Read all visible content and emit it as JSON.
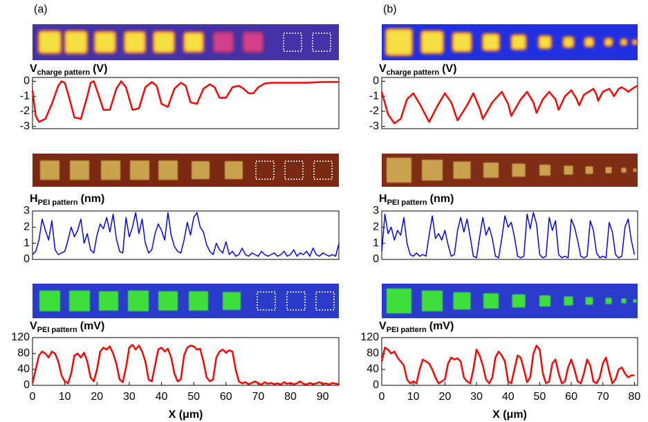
{
  "chart_data": [
    {
      "type": "line",
      "panel_label": "(a)",
      "ylabel": {
        "main": "V",
        "sub": "charge pattern",
        "unit": "(V)"
      },
      "color": "#ff0000",
      "xlim": [
        0,
        95
      ],
      "ylim": [
        -3.15,
        0.25
      ],
      "yticks": [
        0,
        -1,
        -2,
        -3
      ],
      "x": [
        0,
        1,
        2,
        4,
        6,
        8,
        9,
        10,
        11,
        13,
        15,
        17,
        18,
        19,
        20,
        22,
        24,
        26,
        27.5,
        29,
        31,
        33,
        35,
        37,
        38.5,
        40,
        42,
        44,
        46,
        47.5,
        49,
        51,
        53,
        55,
        56.5,
        58,
        60,
        62,
        64,
        65.5,
        67,
        68.5,
        70,
        72,
        74,
        76,
        80,
        85,
        90,
        95
      ],
      "values": [
        -0.6,
        -2.3,
        -2.7,
        -2.5,
        -1.5,
        -0.3,
        0,
        -0.1,
        -0.8,
        -2.4,
        -2.5,
        -1.0,
        -0.1,
        0,
        -0.6,
        -1.9,
        -1.9,
        -0.5,
        0,
        -0.4,
        -1.9,
        -1.8,
        -0.4,
        -0.05,
        -0.3,
        -1.5,
        -1.7,
        -0.5,
        -0.1,
        -0.3,
        -1.4,
        -1.5,
        -0.5,
        -0.2,
        -0.4,
        -1.1,
        -1.1,
        -0.4,
        -0.3,
        -0.5,
        -0.8,
        -0.8,
        -0.4,
        -0.15,
        -0.1,
        -0.1,
        -0.1,
        -0.1,
        -0.05,
        -0.05
      ]
    },
    {
      "type": "line",
      "ylabel": {
        "main": "H",
        "sub": "PEI pattern",
        "unit": "(nm)"
      },
      "color": "#0000ff",
      "xlim": [
        0,
        95
      ],
      "ylim": [
        0,
        3
      ],
      "yticks": [
        0,
        1,
        2,
        3
      ],
      "x": [
        0,
        1,
        2,
        3,
        4,
        5,
        6,
        7,
        8,
        9,
        10,
        11,
        12,
        13,
        14,
        15,
        16,
        17,
        18,
        19,
        20,
        21,
        22,
        23,
        24,
        25,
        26,
        27,
        28,
        29,
        30,
        31,
        32,
        33,
        34,
        35,
        36,
        37,
        38,
        39,
        40,
        41,
        42,
        43,
        44,
        45,
        46,
        47,
        48,
        49,
        50,
        51,
        52,
        53,
        54,
        55,
        56,
        57,
        58,
        59,
        60,
        61,
        62,
        63,
        64,
        65,
        66,
        67,
        68,
        69,
        70,
        71,
        72,
        73,
        74,
        75,
        76,
        77,
        78,
        79,
        80,
        81,
        82,
        83,
        84,
        85,
        86,
        87,
        88,
        89,
        90,
        91,
        92,
        93,
        94,
        95
      ],
      "values": [
        0.3,
        0.5,
        1.2,
        2.5,
        1.8,
        1.2,
        2.4,
        0.6,
        0.3,
        0.4,
        0.5,
        1.2,
        2.0,
        1.4,
        1.8,
        2.5,
        1.0,
        1.6,
        0.6,
        0.4,
        1.5,
        2.2,
        1.9,
        2.6,
        1.7,
        2.8,
        1.3,
        0.5,
        0.4,
        2.6,
        1.4,
        2.0,
        2.9,
        1.6,
        2.5,
        1.0,
        0.4,
        0.6,
        1.6,
        2.2,
        1.8,
        1.2,
        2.9,
        1.5,
        0.8,
        0.5,
        0.4,
        1.2,
        2.3,
        1.5,
        2.6,
        2.9,
        2.0,
        1.7,
        0.9,
        0.5,
        0.3,
        1.0,
        0.6,
        0.4,
        1.1,
        0.3,
        0.5,
        0.2,
        0.3,
        0.7,
        0.3,
        0.2,
        0.4,
        0.3,
        0.2,
        0.5,
        0.3,
        0.2,
        0.3,
        0.4,
        0.2,
        0.3,
        0.5,
        0.2,
        0.3,
        0.6,
        0.2,
        0.4,
        0.3,
        0.5,
        0.2,
        0.7,
        0.3,
        0.2,
        0.4,
        0.3,
        0.2,
        0.3,
        0.2,
        1.0
      ]
    },
    {
      "type": "line",
      "ylabel": {
        "main": "V",
        "sub": "PEI pattern",
        "unit": "(mV)"
      },
      "color": "#ff0000",
      "xlabel": "X (μm)",
      "xlim": [
        0,
        95
      ],
      "ylim": [
        0,
        120
      ],
      "yticks": [
        0,
        40,
        80,
        120
      ],
      "xticks": [
        0,
        10,
        20,
        30,
        40,
        50,
        60,
        70,
        80,
        90
      ],
      "x": [
        0,
        1,
        2,
        3,
        4,
        5,
        6,
        7,
        8,
        9,
        10,
        11,
        12,
        13,
        14,
        15,
        16,
        17,
        18,
        19,
        20,
        21,
        22,
        23,
        24,
        25,
        26,
        27,
        28,
        29,
        30,
        31,
        32,
        33,
        34,
        35,
        36,
        37,
        38,
        39,
        40,
        41,
        42,
        43,
        44,
        45,
        46,
        47,
        48,
        49,
        50,
        51,
        52,
        53,
        54,
        55,
        56,
        57,
        58,
        59,
        60,
        61,
        62,
        63,
        64,
        65,
        66,
        67,
        68,
        69,
        70,
        71,
        72,
        73,
        74,
        75,
        76,
        77,
        78,
        79,
        80,
        81,
        82,
        83,
        84,
        85,
        86,
        87,
        88,
        89,
        90,
        91,
        92,
        93,
        94,
        95
      ],
      "values": [
        5,
        40,
        75,
        85,
        80,
        70,
        85,
        80,
        60,
        25,
        10,
        5,
        30,
        75,
        80,
        70,
        82,
        60,
        20,
        10,
        40,
        85,
        95,
        90,
        98,
        80,
        55,
        15,
        8,
        45,
        95,
        102,
        90,
        100,
        85,
        60,
        15,
        10,
        50,
        90,
        95,
        85,
        92,
        70,
        30,
        10,
        15,
        75,
        95,
        100,
        98,
        90,
        92,
        60,
        20,
        10,
        15,
        70,
        85,
        90,
        82,
        88,
        85,
        40,
        10,
        5,
        8,
        3,
        6,
        10,
        5,
        2,
        8,
        4,
        6,
        3,
        5,
        2,
        8,
        4,
        6,
        3,
        5,
        10,
        4,
        2,
        6,
        3,
        5,
        8,
        3,
        5,
        2,
        6,
        4,
        3
      ]
    },
    {
      "type": "line",
      "panel_label": "(b)",
      "ylabel": {
        "main": "V",
        "sub": "charge pattern",
        "unit": "(V)"
      },
      "color": "#ff0000",
      "xlim": [
        0,
        81
      ],
      "ylim": [
        -3.15,
        0.25
      ],
      "yticks": [
        0,
        -1,
        -2,
        -3
      ],
      "x": [
        0,
        2,
        4,
        6,
        8,
        10,
        12,
        15,
        18,
        20,
        22,
        24,
        27,
        29,
        31,
        32,
        35,
        38,
        40,
        41,
        44,
        46,
        48,
        49,
        51,
        53,
        55,
        56,
        58,
        60,
        61.5,
        62.5,
        64,
        67,
        68,
        68.5,
        70,
        72,
        73,
        73.5,
        75,
        76,
        77.5,
        78,
        80,
        81
      ],
      "values": [
        -0.7,
        -2.2,
        -2.8,
        -2.5,
        -1.2,
        -0.8,
        -1.5,
        -2.7,
        -1.5,
        -0.8,
        -1.4,
        -2.6,
        -1.6,
        -0.8,
        -1.8,
        -2.5,
        -1.4,
        -0.7,
        -1.5,
        -2.3,
        -1.2,
        -0.7,
        -1.4,
        -2.1,
        -1.2,
        -0.7,
        -1.2,
        -1.9,
        -1.0,
        -0.6,
        -1.1,
        -1.6,
        -0.9,
        -0.5,
        -0.9,
        -1.3,
        -0.7,
        -0.5,
        -0.8,
        -1.0,
        -0.5,
        -0.4,
        -0.6,
        -0.7,
        -0.4,
        -0.3
      ]
    },
    {
      "type": "line",
      "ylabel": {
        "main": "H",
        "sub": "PEI pattern",
        "unit": "(nm)"
      },
      "color": "#0000ff",
      "xlim": [
        0,
        81
      ],
      "ylim": [
        0,
        3
      ],
      "yticks": [
        0,
        1,
        2,
        3
      ],
      "x": [
        0,
        1,
        2,
        3,
        4,
        5,
        6,
        7,
        8,
        9,
        10,
        11,
        12,
        13,
        14,
        15,
        16,
        17,
        18,
        19,
        20,
        21,
        22,
        23,
        24,
        25,
        26,
        27,
        28,
        29,
        30,
        31,
        32,
        33,
        34,
        35,
        36,
        37,
        38,
        39,
        40,
        41,
        42,
        43,
        44,
        45,
        46,
        47,
        48,
        49,
        50,
        51,
        52,
        53,
        54,
        55,
        56,
        57,
        58,
        59,
        60,
        61,
        62,
        63,
        64,
        65,
        66,
        67,
        68,
        69,
        70,
        71,
        72,
        73,
        74,
        75,
        76,
        77,
        78,
        79,
        80
      ],
      "values": [
        0.5,
        2.8,
        1.6,
        2.0,
        1.2,
        1.8,
        1.5,
        2.6,
        1.0,
        0.3,
        0.2,
        0.4,
        0.2,
        0.3,
        0.2,
        1.5,
        2.7,
        1.3,
        1.6,
        1.2,
        1.8,
        0.9,
        0.2,
        0.3,
        1.8,
        2.6,
        1.7,
        2.5,
        1.4,
        0.2,
        0.1,
        1.4,
        2.6,
        1.5,
        2.0,
        1.3,
        0.2,
        0.1,
        1.3,
        2.7,
        2.0,
        2.3,
        1.4,
        0.2,
        0.1,
        0.2,
        2.8,
        1.9,
        2.9,
        2.2,
        0.3,
        0.1,
        0.2,
        2.6,
        1.8,
        2.4,
        0.3,
        0.1,
        0.2,
        0.1,
        2.5,
        2.0,
        1.2,
        0.2,
        0.1,
        0.2,
        2.4,
        1.8,
        0.4,
        0.1,
        0.2,
        0.1,
        2.3,
        1.7,
        0.3,
        0.1,
        0.2,
        2.0,
        2.5,
        1.2,
        0.3
      ]
    },
    {
      "type": "line",
      "ylabel": {
        "main": "V",
        "sub": "PEI pattern",
        "unit": "(mV)"
      },
      "color": "#ff0000",
      "xlabel": "X (μm)",
      "xlim": [
        0,
        81
      ],
      "ylim": [
        0,
        120
      ],
      "yticks": [
        0,
        40,
        80,
        120
      ],
      "xticks": [
        0,
        10,
        20,
        30,
        40,
        50,
        60,
        70,
        80
      ],
      "x": [
        0,
        1,
        2,
        3,
        4,
        5,
        6,
        7,
        8,
        9,
        10,
        11,
        12,
        13,
        14,
        15,
        16,
        17,
        18,
        19,
        20,
        21,
        22,
        23,
        24,
        25,
        26,
        27,
        28,
        29,
        30,
        31,
        32,
        33,
        34,
        35,
        36,
        37,
        38,
        39,
        40,
        41,
        42,
        43,
        44,
        45,
        46,
        47,
        48,
        49,
        50,
        51,
        52,
        53,
        54,
        55,
        56,
        57,
        58,
        59,
        60,
        61,
        62,
        63,
        64,
        65,
        66,
        67,
        68,
        69,
        70,
        71,
        72,
        73,
        74,
        75,
        76,
        77,
        78,
        79,
        80
      ],
      "values": [
        60,
        95,
        90,
        80,
        85,
        70,
        60,
        50,
        15,
        5,
        10,
        5,
        40,
        65,
        60,
        55,
        40,
        20,
        5,
        10,
        15,
        55,
        70,
        65,
        68,
        60,
        20,
        10,
        5,
        40,
        90,
        75,
        50,
        15,
        5,
        20,
        70,
        85,
        75,
        60,
        10,
        5,
        40,
        75,
        70,
        40,
        8,
        20,
        80,
        100,
        90,
        30,
        5,
        10,
        55,
        65,
        30,
        5,
        10,
        45,
        65,
        40,
        10,
        5,
        30,
        65,
        50,
        10,
        5,
        20,
        55,
        70,
        35,
        5,
        15,
        40,
        45,
        30,
        20,
        25,
        25
      ]
    }
  ]
}
